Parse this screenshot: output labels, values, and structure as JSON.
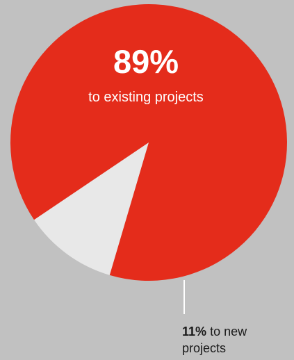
{
  "chart_data": {
    "type": "pie",
    "categories": [
      "to existing projects",
      "to new projects"
    ],
    "values": [
      89,
      11
    ],
    "unit": "%",
    "colors": [
      "#e42c1b",
      "#e8e8e8"
    ],
    "background": "#c1c1c1",
    "labels": {
      "major_value": "89%",
      "major_text": "to existing projects",
      "minor_value": "11%",
      "minor_text": "to new projects"
    }
  }
}
